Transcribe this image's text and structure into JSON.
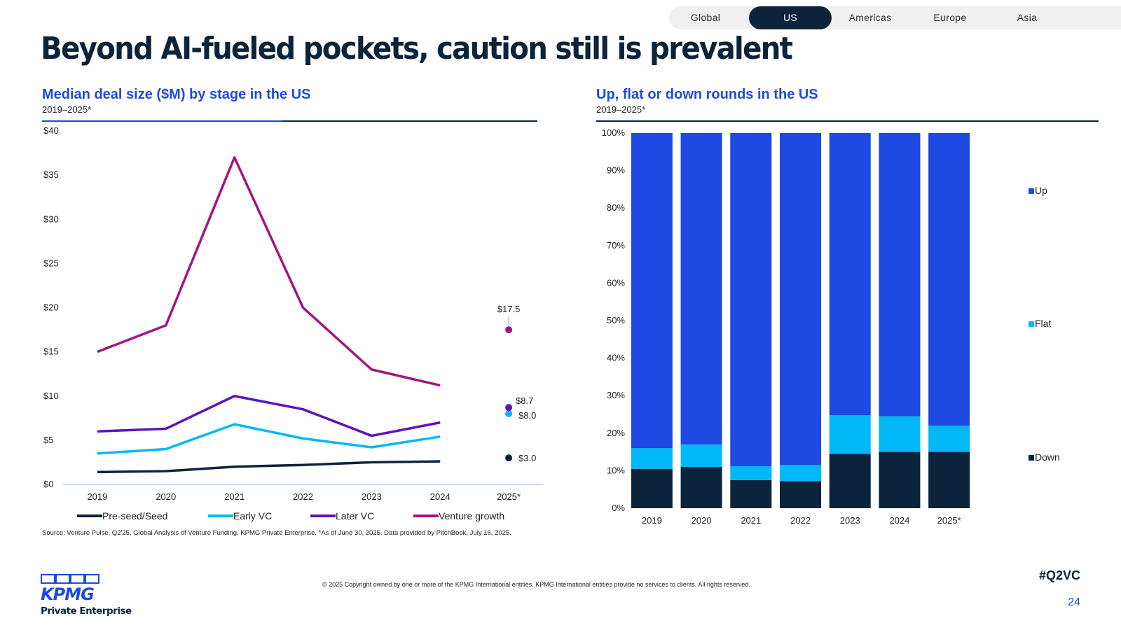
{
  "nav": {
    "tabs": [
      "Global",
      "US",
      "Americas",
      "Europe",
      "Asia"
    ],
    "active": "US"
  },
  "page_title": "Beyond AI-fueled pockets, caution still is prevalent",
  "left": {
    "title": "Median deal size ($M) by stage in the US",
    "subtitle": "2019–2025*"
  },
  "right": {
    "title": "Up, flat or down rounds in the US",
    "subtitle": "2019–2025*"
  },
  "colors": {
    "navy": "#0c233c",
    "blue": "#1e49e2",
    "cyan": "#00b8f5",
    "purple": "#5b13c0",
    "magenta": "#a2167f"
  },
  "chart_data": [
    {
      "type": "line",
      "x": [
        "2019",
        "2020",
        "2021",
        "2022",
        "2023",
        "2024",
        "2025*"
      ],
      "ylim": [
        0,
        40
      ],
      "yticks": [
        "$0",
        "$5",
        "$10",
        "$15",
        "$20",
        "$25",
        "$30",
        "$35",
        "$40"
      ],
      "series": [
        {
          "name": "Pre-seed/Seed",
          "values": [
            1.4,
            1.5,
            2.0,
            2.2,
            2.5,
            2.6,
            3.0
          ],
          "color": "#0c233c"
        },
        {
          "name": "Early VC",
          "values": [
            3.5,
            4.0,
            6.8,
            5.2,
            4.2,
            5.4,
            8.0
          ],
          "color": "#00b8f5"
        },
        {
          "name": "Later VC",
          "values": [
            6.0,
            6.3,
            10.0,
            8.5,
            5.5,
            7.0,
            8.7
          ],
          "color": "#5b13c0"
        },
        {
          "name": "Venture growth",
          "values": [
            15.0,
            18.0,
            37.0,
            20.0,
            13.0,
            11.2,
            17.5
          ],
          "color": "#a2167f"
        }
      ],
      "data_labels": [
        {
          "series": "Venture growth",
          "x": "2025*",
          "text": "$17.5"
        },
        {
          "series": "Later VC",
          "x": "2025*",
          "text": "$8.7"
        },
        {
          "series": "Early VC",
          "x": "2025*",
          "text": "$8.0"
        },
        {
          "series": "Pre-seed/Seed",
          "x": "2025*",
          "text": "$3.0"
        }
      ],
      "legend": "bottom"
    },
    {
      "type": "bar",
      "stacked": true,
      "percent": true,
      "categories": [
        "2019",
        "2020",
        "2021",
        "2022",
        "2023",
        "2024",
        "2025*"
      ],
      "ylim": [
        0,
        100
      ],
      "yticks": [
        "0%",
        "10%",
        "20%",
        "30%",
        "40%",
        "50%",
        "60%",
        "70%",
        "80%",
        "90%",
        "100%"
      ],
      "series": [
        {
          "name": "Down",
          "values": [
            10.5,
            11.0,
            7.5,
            7.2,
            14.5,
            15.0,
            15.0
          ],
          "color": "#0c233c"
        },
        {
          "name": "Flat",
          "values": [
            5.5,
            6.0,
            3.7,
            4.3,
            10.3,
            9.5,
            7.0
          ],
          "color": "#00b8f5"
        },
        {
          "name": "Up",
          "values": [
            84.0,
            83.0,
            88.8,
            88.5,
            75.2,
            75.5,
            78.0
          ],
          "color": "#1e49e2"
        }
      ],
      "legend": "right"
    }
  ],
  "footer": {
    "source": "Source: Venture Pulse, Q2'25, Global Analysis of Venture Funding, KPMG Private Enterprise. *As of June 30, 2025. Data provided by PitchBook, July 16, 2025.",
    "copyright": "© 2025 Copyright owned by one or more of the KPMG International entities. KPMG International entities provide no services to clients. All rights reserved.",
    "hashtag": "#Q2VC",
    "page": "24",
    "logo_text": "KPMG",
    "logo_sub": "Private Enterprise"
  }
}
